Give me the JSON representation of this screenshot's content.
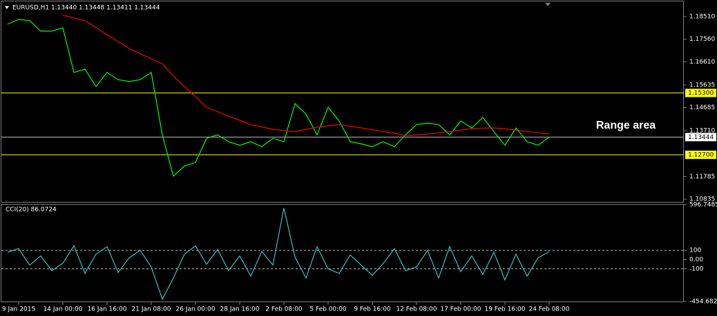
{
  "chart_data": [
    {
      "type": "line",
      "title": "EURUSD,H1  1.13440 1.13448 1.13411 1.13444",
      "annotation": "Range area",
      "ylim": [
        1.10719,
        1.1915
      ],
      "yticks": [
        {
          "value": 1.1851,
          "label": "1.18510"
        },
        {
          "value": 1.1756,
          "label": "1.17560"
        },
        {
          "value": 1.1661,
          "label": "1.16610"
        },
        {
          "value": 1.15635,
          "label": "1.15635"
        },
        {
          "value": 1.14685,
          "label": "1.14685"
        },
        {
          "value": 1.1371,
          "label": "1.13710"
        },
        {
          "value": 1.11785,
          "label": "1.11785"
        },
        {
          "value": 1.10835,
          "label": "1.10835"
        }
      ],
      "hlines": [
        {
          "value": 1.153,
          "label": "1.15300",
          "color": "#ffff00"
        },
        {
          "value": 1.127,
          "label": "1.12700",
          "color": "#ffff00"
        },
        {
          "value": 1.13444,
          "label": "1.13444",
          "color": "#c0c0c0"
        }
      ],
      "series": [
        {
          "color": "#00ff00",
          "values": [
            1.1819,
            1.1839,
            1.1834,
            1.179,
            1.179,
            1.1804,
            1.1616,
            1.163,
            1.1557,
            1.1616,
            1.1586,
            1.1578,
            1.1586,
            1.1616,
            1.1354,
            1.118,
            1.1223,
            1.1238,
            1.1339,
            1.1354,
            1.1325,
            1.131,
            1.1325,
            1.1304,
            1.1339,
            1.1325,
            1.1485,
            1.1441,
            1.1354,
            1.147,
            1.1412,
            1.1325,
            1.1316,
            1.1304,
            1.1325,
            1.1304,
            1.1354,
            1.1397,
            1.1403,
            1.1397,
            1.1354,
            1.1412,
            1.1383,
            1.1427,
            1.1368,
            1.131,
            1.1383,
            1.1325,
            1.131,
            1.1344
          ]
        },
        {
          "color": "#ff0000",
          "values": [
            null,
            null,
            null,
            null,
            null,
            1.1857,
            1.1845,
            1.1834,
            1.1805,
            1.1775,
            1.1746,
            1.1717,
            1.1695,
            1.1674,
            1.1653,
            1.1601,
            1.1557,
            1.1514,
            1.147,
            1.1451,
            1.1432,
            1.1415,
            1.1397,
            1.1387,
            1.1377,
            1.1372,
            1.1368,
            1.1377,
            1.1386,
            1.1392,
            1.1397,
            1.139,
            1.1383,
            1.1375,
            1.1368,
            1.136,
            1.1351,
            1.1354,
            1.1357,
            1.1362,
            1.1368,
            1.1374,
            1.138,
            1.1382,
            1.1383,
            1.1379,
            1.1374,
            1.1368,
            1.1362,
            1.1357
          ]
        }
      ]
    },
    {
      "type": "line",
      "title": "CCI(20) 86.0724",
      "ylim": [
        -454.6828,
        596.7485
      ],
      "yticks": [
        596.7485,
        100,
        {
          "value": 0,
          "label": "0.00"
        },
        -100,
        -454.6828
      ],
      "levels": [
        100,
        -100
      ],
      "categories": [
        null,
        "9 Jan 2015",
        null,
        null,
        null,
        "14 Jan 00:00",
        null,
        null,
        null,
        "16 Jan 16:00",
        null,
        null,
        null,
        "21 Jan 08:00",
        null,
        null,
        null,
        "26 Jan 00:00",
        null,
        null,
        null,
        "28 Jan 16:00",
        null,
        null,
        null,
        "2 Feb 08:00",
        null,
        null,
        null,
        "5 Feb 00:00",
        null,
        null,
        null,
        "9 Feb 16:00",
        null,
        null,
        null,
        "12 Feb 08:00",
        null,
        null,
        null,
        "17 Feb 00:00",
        null,
        null,
        null,
        "19 Feb 16:00",
        null,
        null,
        null,
        "24 Feb 08:00"
      ],
      "series": [
        {
          "color": "#3cc0c0",
          "values": [
            80,
            120,
            -60,
            40,
            -120,
            -40,
            150,
            -150,
            60,
            140,
            -140,
            20,
            100,
            -80,
            -430,
            -200,
            60,
            150,
            -50,
            110,
            -120,
            40,
            -180,
            90,
            -60,
            560,
            30,
            -200,
            140,
            -100,
            -150,
            50,
            -60,
            -170,
            -40,
            120,
            -120,
            -80,
            100,
            -200,
            140,
            -130,
            40,
            -160,
            80,
            -220,
            60,
            -180,
            20,
            86.0724
          ]
        }
      ]
    }
  ]
}
